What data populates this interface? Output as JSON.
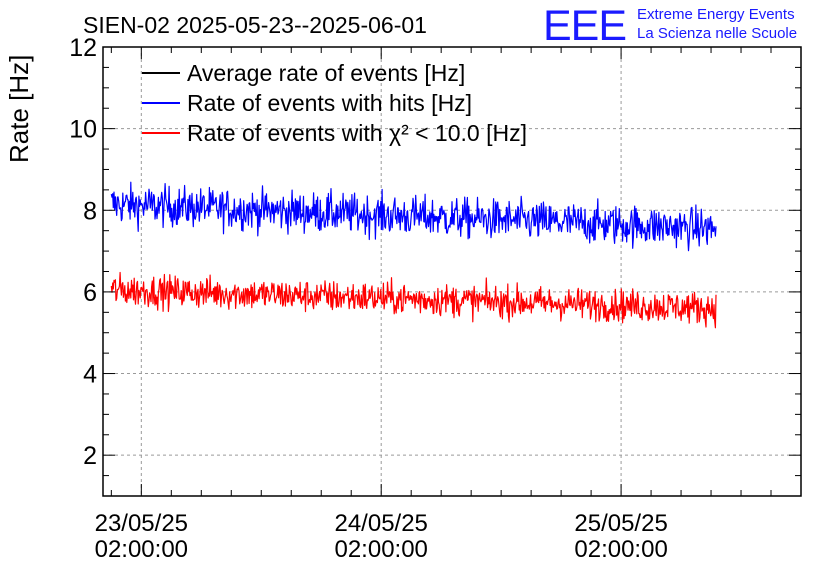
{
  "title": "SIEN-02 2025-05-23--2025-06-01",
  "logo": {
    "mark": "EEE",
    "line1": "Extreme Energy Events",
    "line2": "La Scienza nelle Scuole",
    "color": "#1a1aff"
  },
  "chart_data": {
    "type": "line",
    "title": "SIEN-02 2025-05-23--2025-06-01",
    "ylabel": "Rate [Hz]",
    "xlabel": "",
    "ylim": [
      1,
      12
    ],
    "yticks": [
      2,
      4,
      6,
      8,
      10,
      12
    ],
    "x_axis": {
      "kind": "time",
      "range": [
        "2025-05-22 22:10:00",
        "2025-05-25 20:00:00"
      ],
      "data_range": [
        "2025-05-22 23:00:00",
        "2025-05-25 11:30:00"
      ],
      "ticks": [
        {
          "date": "23/05/25",
          "time": "02:00:00",
          "t": "2025-05-23 02:00:00"
        },
        {
          "date": "24/05/25",
          "time": "02:00:00",
          "t": "2025-05-24 02:00:00"
        },
        {
          "date": "25/05/25",
          "time": "02:00:00",
          "t": "2025-05-25 02:00:00"
        }
      ]
    },
    "grid": true,
    "legend_position": "top-left",
    "series": [
      {
        "name": "Average rate of events [Hz]",
        "color": "#000000",
        "drawn": false,
        "mean_start": null,
        "mean_end": null,
        "spread": null
      },
      {
        "name": "Rate of events with hits [Hz]",
        "color": "#0000ff",
        "drawn": true,
        "mean_start": 8.15,
        "mean_end": 7.55,
        "spread": 0.35
      },
      {
        "name": "Rate of events with χ² < 10.0 [Hz]",
        "color": "#ff0000",
        "drawn": true,
        "mean_start": 6.05,
        "mean_end": 5.6,
        "spread": 0.28
      }
    ]
  }
}
